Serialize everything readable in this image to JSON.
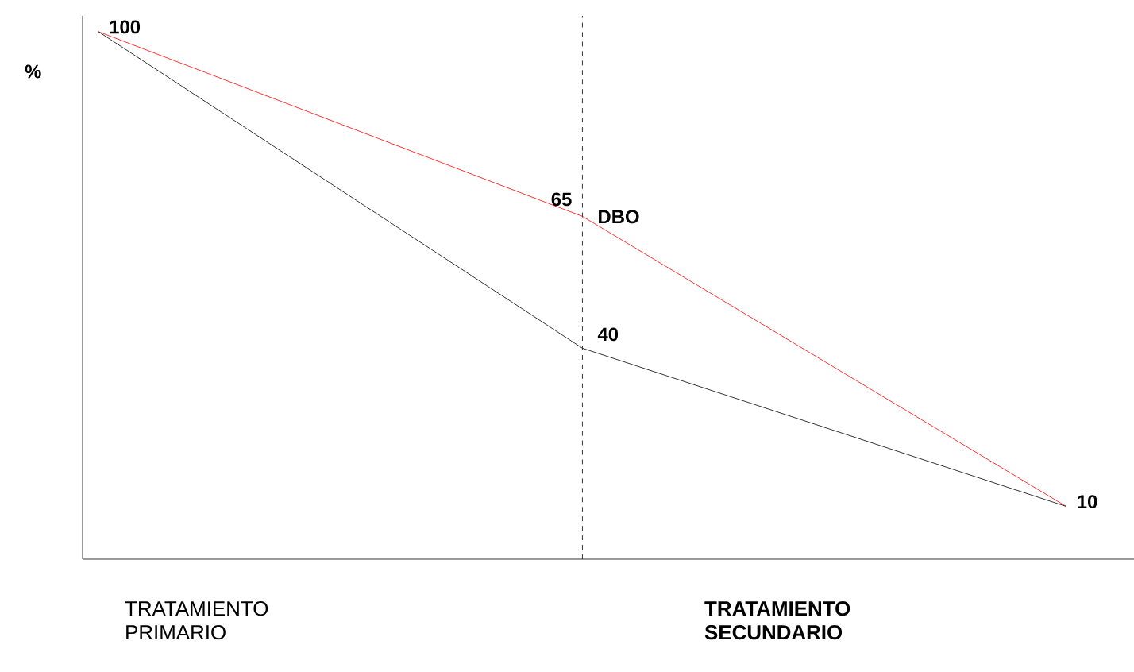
{
  "chart_data": {
    "type": "line",
    "ylabel": "%",
    "categories": [
      null,
      null,
      null
    ],
    "ylim": [
      0,
      103
    ],
    "tick_labels": false,
    "series": [
      {
        "name": "DBO",
        "color": "#ff0000",
        "values": [
          100,
          65,
          10
        ],
        "value_labels": [
          "100",
          "65",
          "10"
        ]
      },
      {
        "color": "#000000",
        "values": [
          100,
          40,
          10
        ],
        "value_labels": [
          null,
          "40",
          null
        ]
      }
    ],
    "annotations": [
      "TRATAMIENTO PRIMARIO",
      "**TRATAMIENTO SECUNDARIO**"
    ]
  }
}
